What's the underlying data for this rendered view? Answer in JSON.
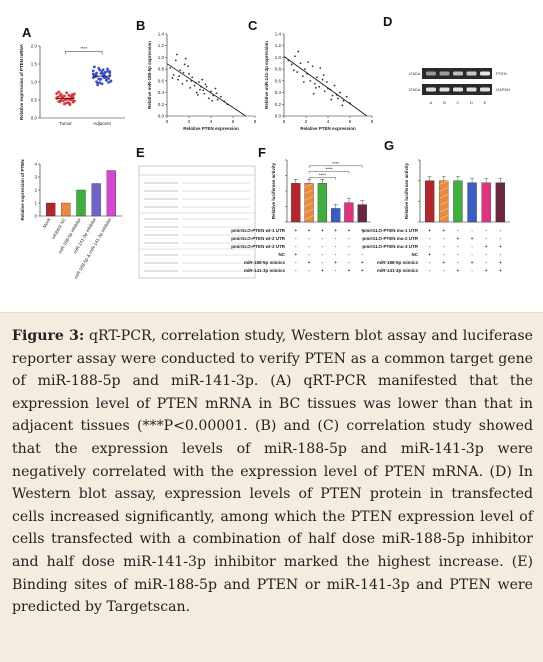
{
  "panels": {
    "A": {
      "letter": "A",
      "ylabel": "Relative expression of PTEN mRNA",
      "significance": "****",
      "groups": [
        "Tumor",
        "Adjacent"
      ],
      "yticks": [
        "0.0",
        "0.5",
        "1.0",
        "1.5",
        "2.0"
      ],
      "colors": {
        "Tumor": "#e0343b",
        "Adjacent": "#3b4fcf"
      }
    },
    "B": {
      "letter": "B",
      "ylabel": "Relative miR-188-5p expression",
      "xlabel": "Relative PTEN expression",
      "yticks": [
        "0.0",
        "0.2",
        "0.4",
        "0.6",
        "0.8",
        "1.0",
        "1.2",
        "1.4"
      ],
      "xticks": [
        "0",
        "2",
        "4",
        "6",
        "8"
      ]
    },
    "C": {
      "letter": "C",
      "ylabel": "Relative miR-141-3p expression",
      "xlabel": "Relative PTEN expression",
      "yticks": [
        "0.0",
        "0.2",
        "0.4",
        "0.6",
        "0.8",
        "1.0",
        "1.2",
        "1.4"
      ],
      "xticks": [
        "0",
        "2",
        "4",
        "6",
        "8"
      ]
    },
    "D": {
      "letter": "D",
      "band_labels": [
        "PTEN",
        "GAPDH"
      ],
      "size_labels": [
        "47kDa",
        "37kDa"
      ],
      "lane_labels": [
        "A",
        "B",
        "C",
        "D",
        "E"
      ]
    },
    "chartPTEN": {
      "ylabel": "Relative expression of PTEN",
      "yticks": [
        "0",
        "1",
        "2",
        "3",
        "4"
      ],
      "categories": [
        "Mock",
        "inhibitor NC",
        "miR-188-5p inhibitor",
        "miR-141-3p inhibitor",
        "miR-188-5p & miR-141-3p inhibitor"
      ]
    },
    "E": {
      "letter": "E"
    },
    "F": {
      "letter": "F",
      "ylabel": "Relative luciferase activity",
      "significance": [
        "****",
        "****",
        "****"
      ],
      "row_labels": [
        "pmirGLO-PTEN wt-1 UTR",
        "pmirGLO-PTEN wt-2 UTR",
        "pmirGLO-PTEN wt-3 UTR",
        "NC",
        "miR-188-5p mimics",
        "miR-141-3p mimics"
      ],
      "signs": [
        [
          "+",
          "+",
          "+",
          "+",
          "+",
          "+"
        ],
        [
          "-",
          "-",
          "-",
          "-",
          "-",
          "-"
        ],
        [
          "-",
          "-",
          "-",
          "-",
          "-",
          "-"
        ],
        [
          "+",
          "-",
          "-",
          "-",
          "-",
          "-"
        ],
        [
          "-",
          "+",
          "-",
          "+",
          "-",
          "+"
        ],
        [
          "-",
          "-",
          "+",
          "-",
          "+",
          "+"
        ]
      ]
    },
    "G": {
      "letter": "G",
      "ylabel": "Relative luciferase activity",
      "row_labels": [
        "pmirGLO-PTEN mu-1 UTR",
        "pmirGLO-PTEN mu-2 UTR",
        "pmirGLO-PTEN mu-3 UTR",
        "NC",
        "miR-188-5p mimics",
        "miR-141-3p mimics"
      ],
      "signs": [
        [
          "+",
          "+",
          "-",
          "-",
          "-",
          "-"
        ],
        [
          "-",
          "-",
          "+",
          "+",
          "-",
          "-"
        ],
        [
          "-",
          "-",
          "-",
          "-",
          "+",
          "+"
        ],
        [
          "+",
          "-",
          "-",
          "-",
          "-",
          "-"
        ],
        [
          "-",
          "+",
          "-",
          "+",
          "-",
          "+"
        ],
        [
          "-",
          "-",
          "+",
          "-",
          "+",
          "+"
        ]
      ]
    }
  },
  "chart_data": [
    {
      "type": "scatter",
      "panel": "A",
      "categories": [
        "Tumor",
        "Adjacent"
      ],
      "series": [
        {
          "name": "Tumor",
          "values": [
            0.55,
            0.62,
            0.48,
            0.7,
            0.51,
            0.44,
            0.58,
            0.66,
            0.39,
            0.53,
            0.6,
            0.47,
            0.72,
            0.56,
            0.41,
            0.63,
            0.5,
            0.68,
            0.45,
            0.59,
            0.52,
            0.37,
            0.64,
            0.57,
            0.49,
            0.61,
            0.43,
            0.54,
            0.67,
            0.46,
            0.58,
            0.51,
            0.42,
            0.65,
            0.55,
            0.48,
            0.6,
            0.53,
            0.4,
            0.57
          ]
        },
        {
          "name": "Adjacent",
          "values": [
            1.12,
            1.25,
            0.98,
            1.34,
            1.05,
            1.18,
            1.42,
            0.92,
            1.08,
            1.21,
            1.3,
            1.02,
            1.15,
            1.38,
            0.95,
            1.27,
            1.1,
            1.22,
            1.01,
            1.33,
            1.16,
            1.06,
            1.29,
            1.19,
            0.97,
            1.24,
            1.12,
            1.36,
            1.03,
            1.2,
            1.09,
            1.28,
            1.14,
            0.99,
            1.31,
            1.17,
            1.07,
            1.23,
            1.11,
            1.26
          ]
        }
      ],
      "ylim": [
        0,
        2.0
      ]
    },
    {
      "type": "scatter",
      "panel": "B",
      "x": [
        0.3,
        0.6,
        0.8,
        1.0,
        1.2,
        1.4,
        1.6,
        1.8,
        2.0,
        2.1,
        2.3,
        2.5,
        2.7,
        2.9,
        3.0,
        3.2,
        3.4,
        3.6,
        3.8,
        4.0,
        4.2,
        4.4,
        4.6,
        4.9,
        5.2,
        5.5,
        1.1,
        1.9,
        2.6,
        3.3,
        0.9,
        1.5,
        2.2,
        2.8,
        3.5,
        4.1,
        0.5,
        1.7,
        3.1,
        4.5
      ],
      "y": [
        0.82,
        0.7,
        0.95,
        0.62,
        0.78,
        0.55,
        0.88,
        0.6,
        0.72,
        0.48,
        0.66,
        0.52,
        0.4,
        0.58,
        0.45,
        0.62,
        0.38,
        0.5,
        0.3,
        0.42,
        0.35,
        0.47,
        0.28,
        0.33,
        0.25,
        0.2,
        0.68,
        0.85,
        0.57,
        0.44,
        1.05,
        0.74,
        0.6,
        0.36,
        0.54,
        0.26,
        0.65,
        0.98,
        0.5,
        0.39
      ],
      "xlim": [
        0,
        8
      ],
      "ylim": [
        0,
        1.4
      ]
    },
    {
      "type": "scatter",
      "panel": "C",
      "x": [
        0.4,
        0.7,
        1.0,
        1.2,
        1.5,
        1.7,
        1.9,
        2.1,
        2.4,
        2.6,
        2.8,
        3.0,
        3.2,
        3.5,
        3.7,
        3.9,
        4.2,
        4.4,
        4.6,
        4.9,
        5.1,
        5.4,
        5.7,
        6.0,
        1.3,
        2.2,
        2.9,
        3.6,
        4.3,
        0.9,
        1.8,
        2.7,
        3.3,
        4.0,
        4.8,
        5.3
      ],
      "y": [
        0.95,
        0.88,
        1.02,
        0.75,
        0.9,
        0.68,
        0.8,
        0.72,
        0.6,
        0.85,
        0.55,
        0.66,
        0.5,
        0.62,
        0.42,
        0.58,
        0.45,
        0.35,
        0.52,
        0.3,
        0.4,
        0.26,
        0.33,
        0.22,
        1.1,
        0.92,
        0.48,
        0.7,
        0.28,
        0.78,
        0.58,
        0.38,
        0.82,
        0.47,
        0.36,
        0.18
      ],
      "xlim": [
        0,
        8
      ],
      "ylim": [
        0,
        1.4
      ]
    },
    {
      "type": "bar",
      "panel": "PTEN",
      "categories": [
        "Mock",
        "inhibitor NC",
        "miR-188-5p inhibitor",
        "miR-141-3p inhibitor",
        "miR-188-5p & miR-141-3p inhibitor"
      ],
      "values": [
        1.0,
        1.0,
        2.0,
        2.5,
        3.5
      ],
      "colors": [
        "#b3262b",
        "#e98a3c",
        "#3fae3c",
        "#6f63c7",
        "#d845d0"
      ],
      "ylim": [
        0,
        4
      ]
    },
    {
      "type": "bar",
      "panel": "F",
      "values": [
        1.0,
        1.0,
        1.0,
        0.35,
        0.5,
        0.45
      ],
      "colors": [
        "#b3262b",
        "#e98a3c",
        "#3fae3c",
        "#3a5bc8",
        "#e0347e",
        "#6b2740"
      ],
      "ylim": [
        0,
        1.6
      ]
    },
    {
      "type": "bar",
      "panel": "G",
      "values": [
        1.0,
        1.0,
        1.0,
        0.95,
        0.95,
        0.95
      ],
      "colors": [
        "#b3262b",
        "#e98a3c",
        "#3fae3c",
        "#3a5bc8",
        "#e0347e",
        "#6b2740"
      ],
      "ylim": [
        0,
        1.5
      ]
    }
  ],
  "caption": {
    "label": "Figure 3:",
    "text": " qRT-PCR, correlation study, Western blot assay and luciferase reporter assay were conducted to verify PTEN as a common target gene of miR-188-5p and miR-141-3p. (A) qRT-PCR manifested that the expression level of PTEN mRNA in BC tissues was lower than that in adjacent tissues (***P<0.00001. (B) and (C) correlation study showed that the expression levels of miR-188-5p and miR-141-3p were negatively correlated with the expression level of PTEN mRNA. (D) In Western blot assay, expression levels of PTEN protein in transfected cells increased significantly, among which the PTEN expression level of cells transfected with a combination of half dose miR-188-5p inhibitor and half dose miR-141-3p inhibitor marked the highest increase. (E) Binding sites of miR-188-5p and PTEN or miR-141-3p and PTEN were predicted by Targetscan."
  }
}
